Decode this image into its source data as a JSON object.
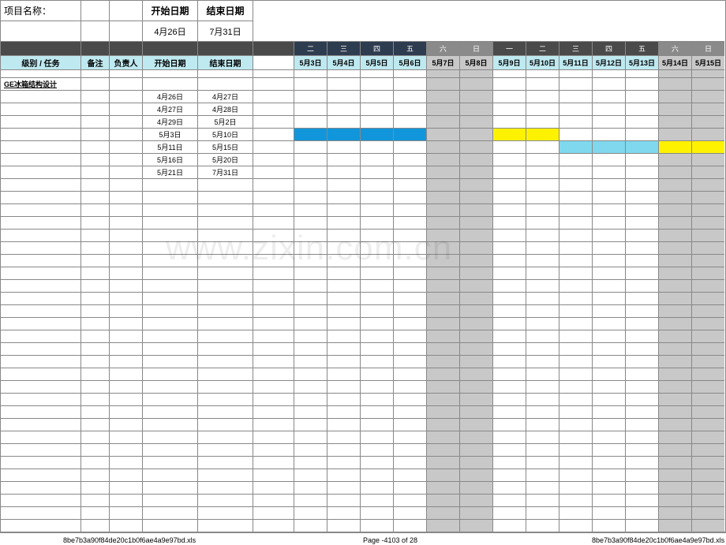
{
  "header": {
    "project_label": "项目名称：",
    "start_label": "开始日期",
    "end_label": "结束日期",
    "start_date": "4月26日",
    "end_date": "7月31日"
  },
  "columns": {
    "left_headers": [
      "级别 / 任务",
      "备注",
      "负责人",
      "开始日期",
      "结束日期"
    ],
    "weekday_row": [
      "二",
      "三",
      "四",
      "五",
      "六",
      "日",
      "一",
      "二",
      "三",
      "四",
      "五",
      "六",
      "日"
    ],
    "weekday_class": [
      "darkblue",
      "darkblue",
      "darkblue",
      "darkblue",
      "grey",
      "grey",
      "dark",
      "dark",
      "dark",
      "dark",
      "dark",
      "grey",
      "grey"
    ],
    "date_row": [
      "5月3日",
      "5月4日",
      "5月5日",
      "5月6日",
      "5月7日",
      "5月8日",
      "5月9日",
      "5月10日",
      "5月11日",
      "5月12日",
      "5月13日",
      "5月14日",
      "5月15日"
    ],
    "date_class": [
      "lightblue",
      "lightblue",
      "lightblue",
      "lightblue",
      "ltgrey",
      "ltgrey",
      "lightblue",
      "lightblue",
      "lightblue",
      "lightblue",
      "lightblue",
      "ltgrey",
      "ltgrey"
    ],
    "weekend_idx": [
      4,
      5,
      11,
      12
    ]
  },
  "section_title": "GE冰箱结构设计",
  "tasks": [
    {
      "start": "4月26日",
      "end": "4月27日",
      "bars": []
    },
    {
      "start": "4月27日",
      "end": "4月28日",
      "bars": []
    },
    {
      "start": "4月29日",
      "end": "5月2日",
      "bars": []
    },
    {
      "start": "5月3日",
      "end": "5月10日",
      "bars": [
        {
          "i": 0,
          "c": "bar-blue"
        },
        {
          "i": 1,
          "c": "bar-blue"
        },
        {
          "i": 2,
          "c": "bar-blue"
        },
        {
          "i": 3,
          "c": "bar-blue"
        },
        {
          "i": 6,
          "c": "bar-yellow"
        },
        {
          "i": 7,
          "c": "bar-yellow"
        }
      ]
    },
    {
      "start": "5月11日",
      "end": "5月15日",
      "bars": [
        {
          "i": 8,
          "c": "bar-cyan"
        },
        {
          "i": 9,
          "c": "bar-cyan"
        },
        {
          "i": 10,
          "c": "bar-cyan"
        },
        {
          "i": 11,
          "c": "bar-yellow"
        },
        {
          "i": 12,
          "c": "bar-yellow"
        }
      ]
    },
    {
      "start": "5月16日",
      "end": "5月20日",
      "bars": []
    },
    {
      "start": "5月21日",
      "end": "7月31日",
      "bars": []
    }
  ],
  "empty_rows": 28,
  "footer": {
    "file_left": "8be7b3a90f84de20c1b0f6ae4a9e97bd.xls",
    "page": "Page -4103 of  28",
    "file_right": "8be7b3a90f84de20c1b0f6ae4a9e97bd.xls"
  },
  "watermark": "www.zixin.com.cn",
  "colors": {
    "bar_blue": "#1296db",
    "bar_yellow": "#fff200",
    "bar_cyan": "#7fd8ee",
    "weekend_bg": "#c8c8c8",
    "header_lightblue": "#bfe9f0",
    "header_darkblue": "#2e3c50",
    "header_dark": "#4a4a4a",
    "header_grey": "#8a8a8a",
    "border": "#888888",
    "background": "#ffffff"
  }
}
